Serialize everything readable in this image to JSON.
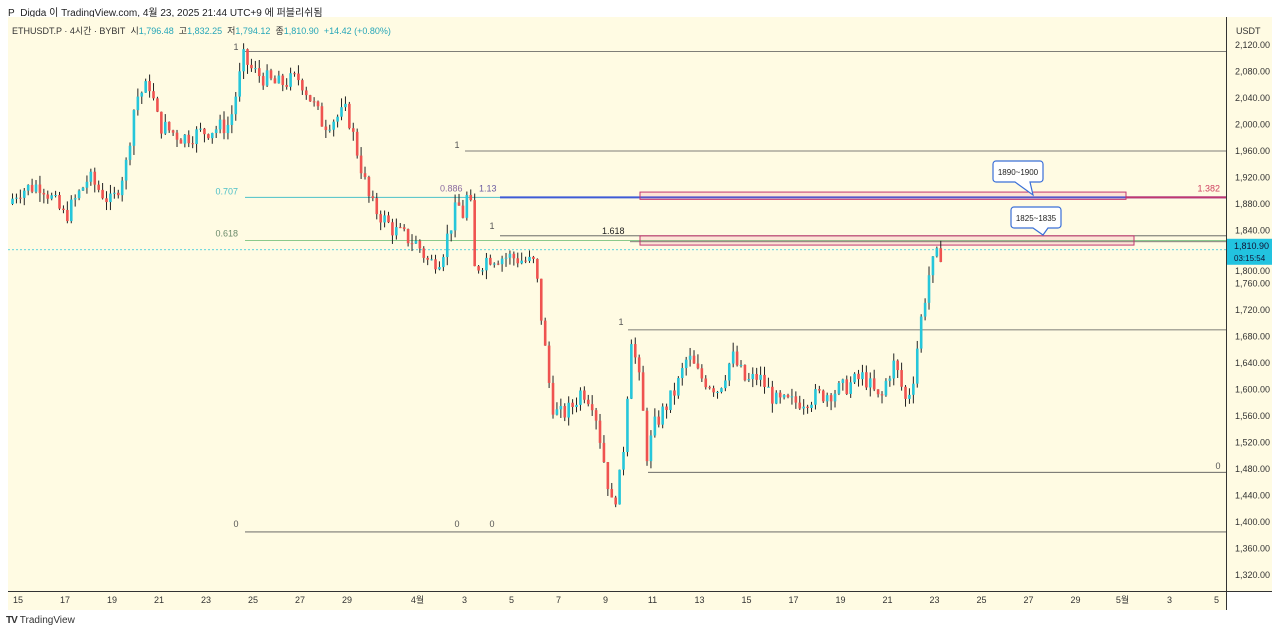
{
  "header": {
    "caption": "P_Digda 이 TradingView.com, 4월 23, 2025 21:44 UTC+9 에 퍼블리쉬됨"
  },
  "legend": {
    "symbol": "ETHUSDT.P · 4시간 · BYBIT",
    "o_label": "시",
    "o": "1,796.48",
    "h_label": "고",
    "h": "1,832.25",
    "l_label": "저",
    "l": "1,794.12",
    "c_label": "종",
    "c": "1,810.90",
    "change": "+14.42 (+0.80%)"
  },
  "footer": {
    "brand": "TradingView"
  },
  "colors": {
    "bg": "#fffbe3",
    "up": "#26c6da",
    "down": "#ef5350",
    "fib707": "#4cc0c8",
    "fib618": "#8bc98b",
    "blue": "#3f5bd6",
    "zone": "#c2366f"
  },
  "chart_data": {
    "type": "candlestick",
    "currency": "USDT",
    "ylim": [
      1300,
      2130
    ],
    "y_ticks": [
      2120,
      2080,
      2040,
      2000,
      1960,
      1920,
      1880,
      1840,
      1800,
      1760,
      1720,
      1680,
      1640,
      1600,
      1560,
      1520,
      1480,
      1440,
      1400,
      1360,
      1320
    ],
    "y_tick_labels": [
      "2,120.00",
      "2,080.00",
      "2,040.00",
      "2,000.00",
      "1,960.00",
      "1,920.00",
      "1,880.00",
      "1,840.00",
      "1,800.00",
      "1,760.00",
      "1,720.00",
      "1,680.00",
      "1,640.00",
      "1,600.00",
      "1,560.00",
      "1,520.00",
      "1,480.00",
      "1,440.00",
      "1,400.00",
      "1,360.00",
      "1,320.00"
    ],
    "x_ticks": [
      {
        "d": 0,
        "label": "15"
      },
      {
        "d": 2,
        "label": "17"
      },
      {
        "d": 4,
        "label": "19"
      },
      {
        "d": 6,
        "label": "21"
      },
      {
        "d": 8,
        "label": "23"
      },
      {
        "d": 10,
        "label": "25"
      },
      {
        "d": 12,
        "label": "27"
      },
      {
        "d": 14,
        "label": "29"
      },
      {
        "d": 17,
        "label": "4월"
      },
      {
        "d": 19,
        "label": "3"
      },
      {
        "d": 21,
        "label": "5"
      },
      {
        "d": 23,
        "label": "7"
      },
      {
        "d": 25,
        "label": "9"
      },
      {
        "d": 27,
        "label": "11"
      },
      {
        "d": 29,
        "label": "13"
      },
      {
        "d": 31,
        "label": "15"
      },
      {
        "d": 33,
        "label": "17"
      },
      {
        "d": 35,
        "label": "19"
      },
      {
        "d": 37,
        "label": "21"
      },
      {
        "d": 39,
        "label": "23"
      },
      {
        "d": 41,
        "label": "25"
      },
      {
        "d": 43,
        "label": "27"
      },
      {
        "d": 45,
        "label": "29"
      },
      {
        "d": 47,
        "label": "5월"
      },
      {
        "d": 49,
        "label": "3"
      },
      {
        "d": 51,
        "label": "5"
      }
    ],
    "price_path": [
      [
        -0.4,
        1880
      ],
      [
        0,
        1900
      ],
      [
        1,
        1910
      ],
      [
        2,
        1860
      ],
      [
        3,
        1920
      ],
      [
        4,
        1880
      ],
      [
        4.6,
        1940
      ],
      [
        5,
        2040
      ],
      [
        5.6,
        2060
      ],
      [
        6,
        2000
      ],
      [
        7,
        1980
      ],
      [
        8,
        1990
      ],
      [
        9,
        2000
      ],
      [
        9.6,
        2100
      ],
      [
        10,
        2080
      ],
      [
        11,
        2060
      ],
      [
        12,
        2070
      ],
      [
        13,
        2000
      ],
      [
        14,
        2020
      ],
      [
        15,
        1880
      ],
      [
        16,
        1840
      ],
      [
        17,
        1820
      ],
      [
        17.5,
        1790
      ],
      [
        18,
        1800
      ],
      [
        18.7,
        1880
      ],
      [
        19,
        1860
      ],
      [
        19.2,
        1920
      ],
      [
        19.4,
        1780
      ],
      [
        20,
        1800
      ],
      [
        21,
        1800
      ],
      [
        22,
        1790
      ],
      [
        22.7,
        1580
      ],
      [
        23,
        1560
      ],
      [
        23.5,
        1570
      ],
      [
        24,
        1600
      ],
      [
        24.5,
        1580
      ],
      [
        25,
        1480
      ],
      [
        25.3,
        1420
      ],
      [
        25.7,
        1480
      ],
      [
        26.1,
        1680
      ],
      [
        26.5,
        1600
      ],
      [
        26.8,
        1490
      ],
      [
        27,
        1540
      ],
      [
        28,
        1600
      ],
      [
        28.5,
        1650
      ],
      [
        29,
        1620
      ],
      [
        29.8,
        1600
      ],
      [
        30.4,
        1650
      ],
      [
        31,
        1610
      ],
      [
        31.5,
        1620
      ],
      [
        32.3,
        1580
      ],
      [
        33,
        1580
      ],
      [
        34,
        1590
      ],
      [
        35,
        1600
      ],
      [
        36,
        1620
      ],
      [
        36.7,
        1580
      ],
      [
        37,
        1620
      ],
      [
        37.3,
        1640
      ],
      [
        37.8,
        1580
      ],
      [
        38.1,
        1620
      ],
      [
        38.4,
        1700
      ],
      [
        38.8,
        1780
      ],
      [
        39.1,
        1800
      ],
      [
        39.4,
        1810.9
      ]
    ],
    "last_price": {
      "value": "1,810.90",
      "countdown": "03:15:54"
    },
    "levels": [
      {
        "name": "fib-0.707",
        "price": 1890,
        "label": "0.707"
      },
      {
        "name": "fib-0.618",
        "price": 1825,
        "label": "0.618"
      },
      {
        "name": "fib-1.382",
        "price": 1890,
        "label": "1.382"
      },
      {
        "name": "fib-1.13",
        "price": 1890,
        "label": "1.13"
      },
      {
        "name": "fib-1.618",
        "price": 1828,
        "label": "1.618"
      },
      {
        "name": "fib-0.886",
        "price": 1890,
        "label": "0.886"
      }
    ],
    "zones": [
      {
        "label": "1890~1900",
        "low": 1887,
        "high": 1898
      },
      {
        "label": "1825~1835",
        "low": 1818,
        "high": 1832
      }
    ],
    "marks": [
      "1",
      "1",
      "1",
      "1",
      "0",
      "0",
      "0",
      "0"
    ]
  }
}
